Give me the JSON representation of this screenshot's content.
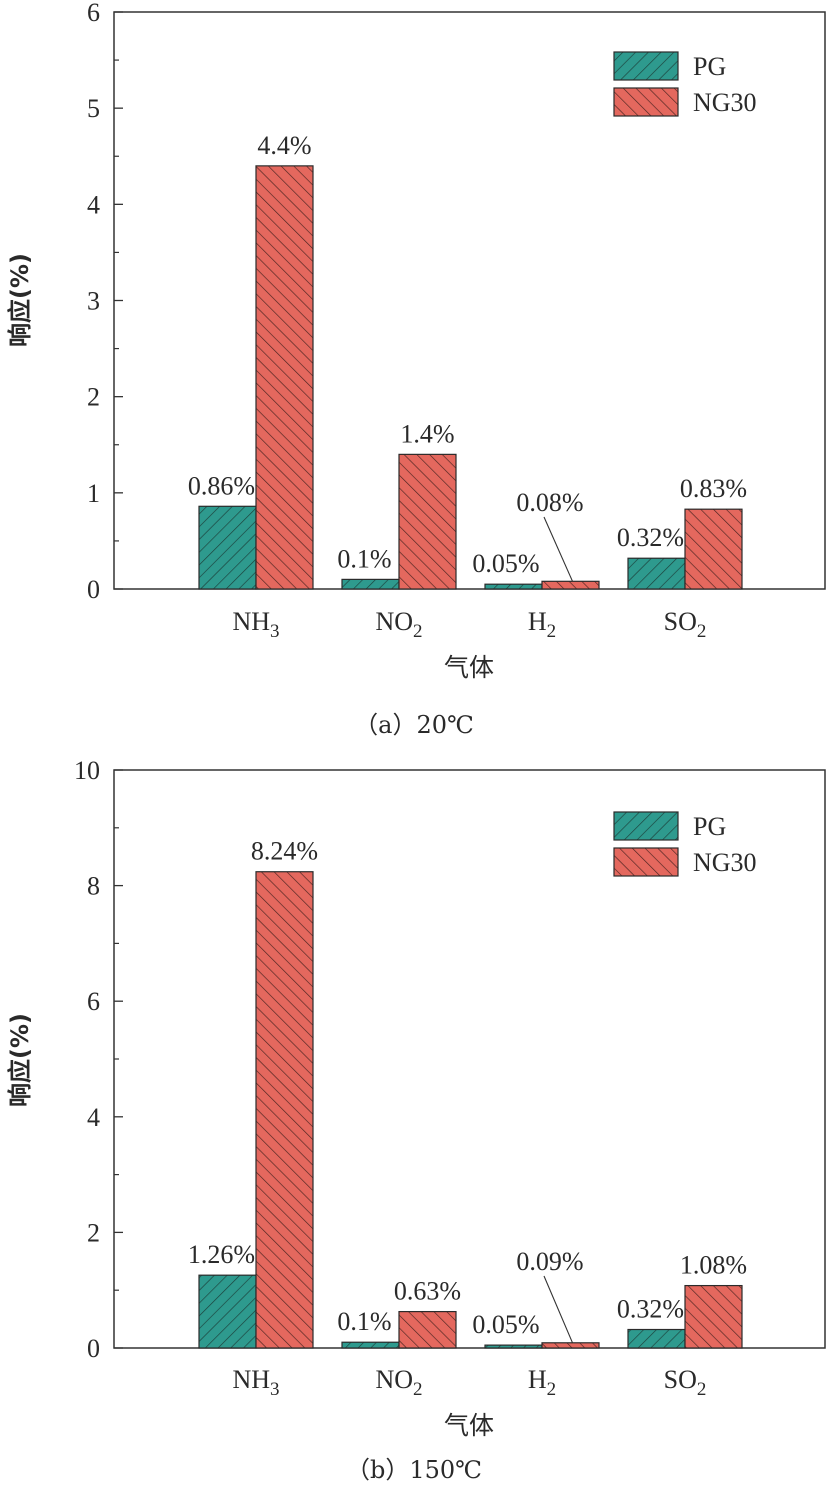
{
  "colors": {
    "pg": "#2E9A8E",
    "ng30": "#E4685E",
    "axis": "#333333"
  },
  "chart_data": [
    {
      "type": "bar",
      "caption": "（a）20℃",
      "xlabel": "气体",
      "ylabel": "响应(%)",
      "ylim": [
        0,
        6
      ],
      "yticks": [
        "0",
        "1",
        "2",
        "3",
        "4",
        "5",
        "6"
      ],
      "categories": [
        {
          "base": "NH",
          "sub": "3"
        },
        {
          "base": "NO",
          "sub": "2"
        },
        {
          "base": "H",
          "sub": "2"
        },
        {
          "base": "SO",
          "sub": "2"
        }
      ],
      "legend_position": "top-right",
      "series": [
        {
          "name": "PG",
          "values": [
            0.86,
            0.1,
            0.05,
            0.32
          ],
          "labels": [
            "0.86%",
            "0.1%",
            "0.05%",
            "0.32%"
          ]
        },
        {
          "name": "NG30",
          "values": [
            4.4,
            1.4,
            0.08,
            0.83
          ],
          "labels": [
            "4.4%",
            "1.4%",
            "0.08%",
            "0.83%"
          ]
        }
      ]
    },
    {
      "type": "bar",
      "caption": "（b）150℃",
      "xlabel": "气体",
      "ylabel": "响应(%)",
      "ylim": [
        0,
        10
      ],
      "yticks": [
        "0",
        "2",
        "4",
        "6",
        "8",
        "10"
      ],
      "categories": [
        {
          "base": "NH",
          "sub": "3"
        },
        {
          "base": "NO",
          "sub": "2"
        },
        {
          "base": "H",
          "sub": "2"
        },
        {
          "base": "SO",
          "sub": "2"
        }
      ],
      "legend_position": "top-right",
      "series": [
        {
          "name": "PG",
          "values": [
            1.26,
            0.1,
            0.05,
            0.32
          ],
          "labels": [
            "1.26%",
            "0.1%",
            "0.05%",
            "0.32%"
          ]
        },
        {
          "name": "NG30",
          "values": [
            8.24,
            0.63,
            0.09,
            1.08
          ],
          "labels": [
            "8.24%",
            "0.63%",
            "0.09%",
            "1.08%"
          ]
        }
      ]
    }
  ]
}
